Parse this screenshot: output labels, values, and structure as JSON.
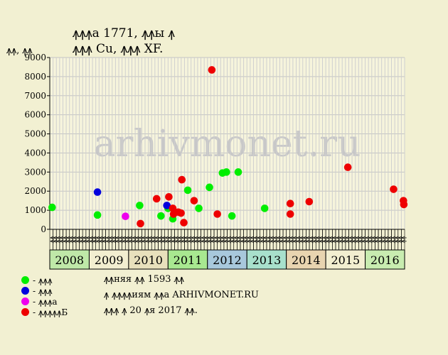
{
  "titles": {
    "line1": "ꙟꙟꙟа 1771, ꙟꙟы ꙟ",
    "line2": "ꙟꙟꙟ Cu, ꙟꙟꙟ XF."
  },
  "watermark": "arhivmonet.ru",
  "legend": [
    {
      "label": "- ꙟꙟꙟ",
      "color": "#00ee00"
    },
    {
      "label": "- ꙟꙟꙟ",
      "color": "#0000dd"
    },
    {
      "label": "- ꙟꙟꙟа",
      "color": "#ee00ee"
    },
    {
      "label": "- ꙟꙟꙟꙟꙟБ",
      "color": "#ee0000"
    }
  ],
  "footer": {
    "line1": "ꙟꙟняя ꙟꙟ 1593 ꙟꙟ",
    "line2": "ꙟ ꙟꙟꙟꙟиям ꙟꙟа ARHIVMONET.RU",
    "line3": "ꙟꙟꙟ ꙟ 20 ꙟя 2017 ꙟꙟ."
  },
  "chart_data": {
    "type": "scatter",
    "ylabel": "ꙟꙟ, ꙟꙟ",
    "ylim": [
      0,
      9000
    ],
    "yticks": [
      0,
      1000,
      2000,
      3000,
      4000,
      5000,
      6000,
      7000,
      8000,
      9000
    ],
    "grid": true,
    "years": [
      {
        "label": "2008",
        "color": "#bfe8a8"
      },
      {
        "label": "2009",
        "color": "#f2eed0"
      },
      {
        "label": "2010",
        "color": "#e8e0bc"
      },
      {
        "label": "2011",
        "color": "#a8e890"
      },
      {
        "label": "2012",
        "color": "#a8c8dc"
      },
      {
        "label": "2013",
        "color": "#a8e0cc"
      },
      {
        "label": "2014",
        "color": "#e8d4b0"
      },
      {
        "label": "2015",
        "color": "#f2eed0"
      },
      {
        "label": "2016",
        "color": "#c8ecb0"
      }
    ],
    "months": [
      "ꙟꙟ",
      "ꙟꙟ",
      "ꙟꙟ",
      "ꙟꙟ",
      "ꙟꙟ",
      "ꙟꙟ",
      "ꙟꙟ",
      "ꙟꙟ",
      "ꙟꙟ",
      "ꙟꙟ",
      "ꙟꙟ",
      "ꙟꙟ"
    ],
    "series": [
      {
        "name": "- ꙟꙟꙟ",
        "color": "#00ee00",
        "points": [
          {
            "x": 2008.06,
            "y": 1150
          },
          {
            "x": 2009.21,
            "y": 750
          },
          {
            "x": 2010.28,
            "y": 1250
          },
          {
            "x": 2010.82,
            "y": 700
          },
          {
            "x": 2011.0,
            "y": 1100
          },
          {
            "x": 2011.12,
            "y": 550
          },
          {
            "x": 2011.5,
            "y": 2050
          },
          {
            "x": 2011.78,
            "y": 1100
          },
          {
            "x": 2012.05,
            "y": 2200
          },
          {
            "x": 2012.38,
            "y": 2950
          },
          {
            "x": 2012.48,
            "y": 3000
          },
          {
            "x": 2012.62,
            "y": 700
          },
          {
            "x": 2012.78,
            "y": 3000
          },
          {
            "x": 2013.45,
            "y": 1100
          }
        ]
      },
      {
        "name": "- ꙟꙟꙟ",
        "color": "#0000dd",
        "points": [
          {
            "x": 2009.21,
            "y": 1950
          },
          {
            "x": 2010.97,
            "y": 1250
          }
        ]
      },
      {
        "name": "- ꙟꙟꙟа",
        "color": "#ee00ee",
        "points": [
          {
            "x": 2009.92,
            "y": 680
          }
        ]
      },
      {
        "name": "- ꙟꙟꙟꙟꙟБ",
        "color": "#ee0000",
        "points": [
          {
            "x": 2010.3,
            "y": 300
          },
          {
            "x": 2010.71,
            "y": 1600
          },
          {
            "x": 2011.02,
            "y": 1700
          },
          {
            "x": 2011.12,
            "y": 1100
          },
          {
            "x": 2011.14,
            "y": 800
          },
          {
            "x": 2011.26,
            "y": 900
          },
          {
            "x": 2011.33,
            "y": 850
          },
          {
            "x": 2011.35,
            "y": 2600
          },
          {
            "x": 2011.4,
            "y": 350
          },
          {
            "x": 2011.66,
            "y": 1500
          },
          {
            "x": 2012.11,
            "y": 8350
          },
          {
            "x": 2012.25,
            "y": 800
          },
          {
            "x": 2014.1,
            "y": 800
          },
          {
            "x": 2014.1,
            "y": 1350
          },
          {
            "x": 2014.58,
            "y": 1450
          },
          {
            "x": 2015.56,
            "y": 3250
          },
          {
            "x": 2016.72,
            "y": 2100
          },
          {
            "x": 2016.97,
            "y": 1500
          },
          {
            "x": 2016.98,
            "y": 1300
          }
        ]
      }
    ]
  }
}
